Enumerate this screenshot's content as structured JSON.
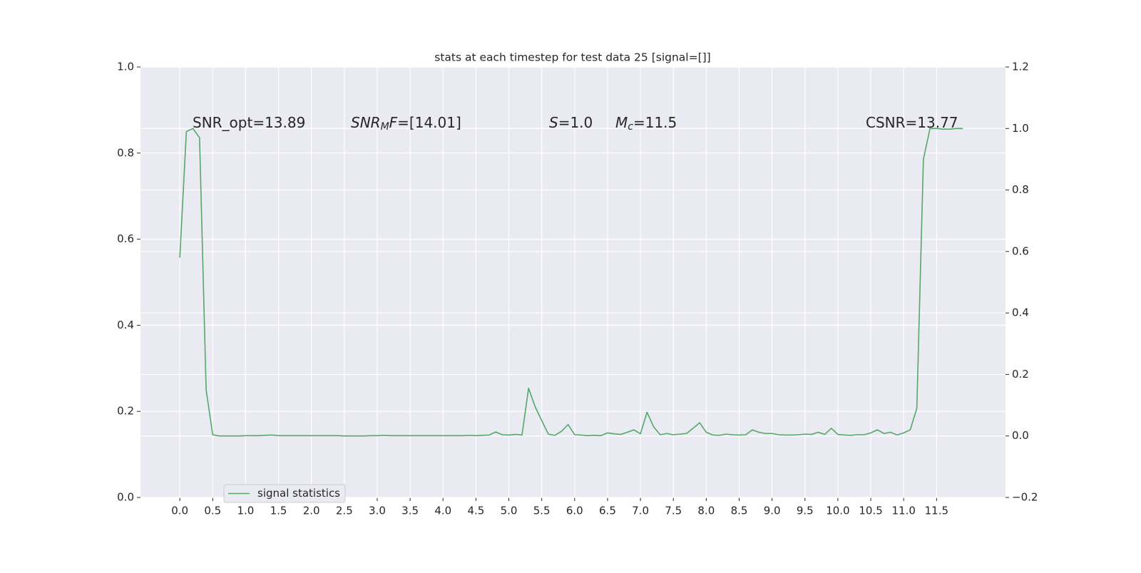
{
  "chart_data": {
    "type": "line",
    "title": "stats at each timestep for test data 25 [signal=[]]",
    "xlim": [
      -0.5975,
      12.5475
    ],
    "xticks": [
      {
        "value": 0,
        "label": "0.0"
      },
      0.5,
      {
        "value": 1,
        "label": "1.0"
      },
      1.5,
      {
        "value": 2,
        "label": "2.0"
      },
      2.5,
      {
        "value": 3,
        "label": "3.0"
      },
      3.5,
      {
        "value": 4,
        "label": "4.0"
      },
      4.5,
      {
        "value": 5,
        "label": "5.0"
      },
      5.5,
      {
        "value": 6,
        "label": "6.0"
      },
      6.5,
      {
        "value": 7,
        "label": "7.0"
      },
      7.5,
      {
        "value": 8,
        "label": "8.0"
      },
      8.5,
      {
        "value": 9,
        "label": "9.0"
      },
      9.5,
      {
        "value": 10,
        "label": "10.0"
      },
      10.5,
      {
        "value": 11,
        "label": "11.0"
      },
      11.5
    ],
    "ylim": [
      0,
      1
    ],
    "yticks": [
      {
        "value": 0,
        "label": "0.0"
      },
      0.2,
      0.4,
      0.6,
      0.8,
      {
        "value": 1,
        "label": "1.0"
      }
    ],
    "y2lim": [
      -0.2,
      1.2
    ],
    "y2ticks": [
      {
        "value": -0.2,
        "label": "−0.2"
      },
      {
        "value": 0,
        "label": "0.0"
      },
      0.2,
      0.4,
      0.6,
      0.8,
      {
        "value": 1,
        "label": "1.0"
      },
      1.2
    ],
    "grid": true,
    "legend": "lower left",
    "annotations": [
      [
        {
          "text": "SNR_opt=13.89"
        }
      ],
      [
        {
          "text": "SNR",
          "italic": true
        },
        {
          "text": "M",
          "italic": true,
          "sub": true
        },
        {
          "text": "F",
          "italic": true
        },
        {
          "text": "=[14.01]"
        }
      ],
      [
        {
          "text": "S",
          "italic": true
        },
        {
          "text": "=1.0"
        }
      ],
      [
        {
          "text": "M",
          "italic": true
        },
        {
          "text": "c",
          "italic": true,
          "sub": true
        },
        {
          "text": "=11.5"
        }
      ],
      [
        {
          "text": "CSNR=13.77"
        }
      ]
    ],
    "x": [
      0,
      0.1,
      0.2,
      0.3,
      0.4,
      0.5,
      0.6,
      0.7,
      0.8,
      0.9,
      1,
      1.1,
      1.2,
      1.3,
      1.4,
      1.5,
      1.6,
      1.7,
      1.8,
      1.9,
      2,
      2.1,
      2.2,
      2.3,
      2.4,
      2.5,
      2.6,
      2.7,
      2.8,
      2.9,
      3,
      3.1,
      3.2,
      3.3,
      3.4,
      3.5,
      3.6,
      3.7,
      3.8,
      3.9,
      4,
      4.1,
      4.2,
      4.3,
      4.4,
      4.5,
      4.6,
      4.7,
      4.8,
      4.9,
      5,
      5.1,
      5.2,
      5.3,
      5.4,
      5.5,
      5.6,
      5.7,
      5.8,
      5.9,
      6,
      6.1,
      6.2,
      6.3,
      6.4,
      6.5,
      6.6,
      6.7,
      6.8,
      6.9,
      7,
      7.1,
      7.2,
      7.3,
      7.4,
      7.5,
      7.6,
      7.7,
      7.8,
      7.9,
      8,
      8.1,
      8.2,
      8.3,
      8.4,
      8.5,
      8.6,
      8.7,
      8.8,
      8.9,
      9,
      9.1,
      9.2,
      9.3,
      9.4,
      9.5,
      9.6,
      9.7,
      9.8,
      9.9,
      10,
      10.1,
      10.2,
      10.3,
      10.4,
      10.5,
      10.6,
      10.7,
      10.8,
      10.9,
      11,
      11.1,
      11.2,
      11.3,
      11.4,
      11.5,
      11.6,
      11.7,
      11.8,
      11.9
    ],
    "series": [
      {
        "name": "signal statistics",
        "color": "#55a868",
        "axis": "y2",
        "values": [
          0.58,
          0.99,
          1.0,
          0.97,
          0.15,
          0.004,
          0.0,
          0.0,
          0.0,
          0.0,
          0.001,
          0.001,
          0.001,
          0.002,
          0.003,
          0.001,
          0.001,
          0.001,
          0.001,
          0.001,
          0.001,
          0.001,
          0.001,
          0.001,
          0.001,
          0.0,
          0.0,
          0.0,
          0.0,
          0.001,
          0.001,
          0.002,
          0.001,
          0.001,
          0.001,
          0.001,
          0.001,
          0.001,
          0.001,
          0.001,
          0.001,
          0.001,
          0.001,
          0.001,
          0.002,
          0.001,
          0.002,
          0.003,
          0.013,
          0.004,
          0.003,
          0.005,
          0.003,
          0.155,
          0.095,
          0.05,
          0.006,
          0.002,
          0.015,
          0.037,
          0.004,
          0.003,
          0.001,
          0.002,
          0.001,
          0.01,
          0.007,
          0.005,
          0.012,
          0.02,
          0.007,
          0.077,
          0.03,
          0.004,
          0.008,
          0.004,
          0.006,
          0.008,
          0.025,
          0.043,
          0.012,
          0.003,
          0.002,
          0.006,
          0.004,
          0.003,
          0.004,
          0.02,
          0.012,
          0.008,
          0.008,
          0.004,
          0.003,
          0.003,
          0.004,
          0.006,
          0.005,
          0.012,
          0.005,
          0.025,
          0.005,
          0.003,
          0.002,
          0.004,
          0.004,
          0.01,
          0.02,
          0.008,
          0.012,
          0.003,
          0.01,
          0.02,
          0.09,
          0.9,
          1.0,
          1.0,
          0.998,
          0.998,
          1.0,
          1.0
        ]
      }
    ]
  }
}
